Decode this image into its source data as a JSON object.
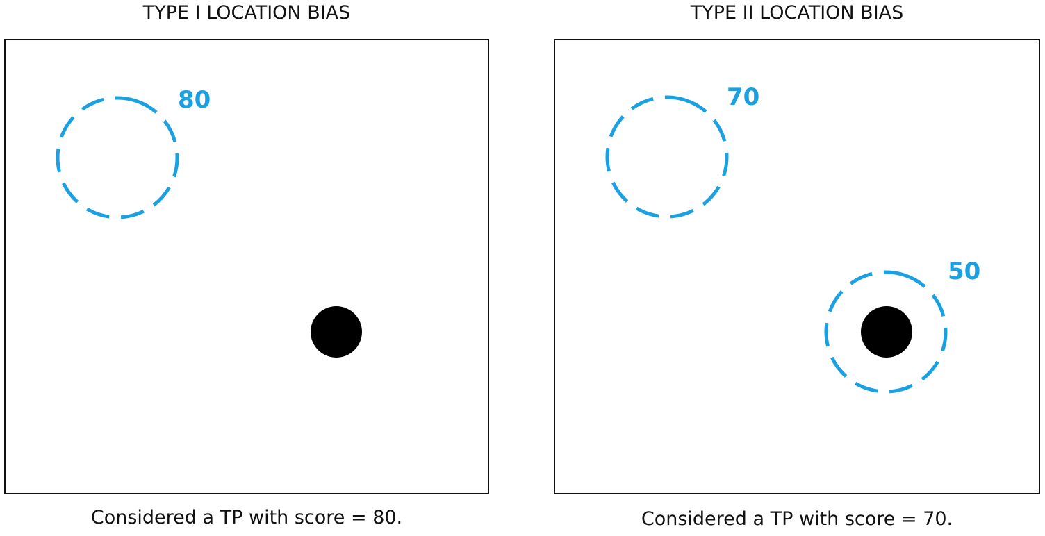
{
  "colors": {
    "prediction": "#1ba1e2",
    "ground_truth": "#000000",
    "frame": "#111111"
  },
  "panels": [
    {
      "title": "TYPE I LOCATION BIAS",
      "caption": "Considered a TP with score = 80.",
      "predictions": [
        {
          "score_label": "80"
        }
      ]
    },
    {
      "title": "TYPE II LOCATION BIAS",
      "caption": "Considered a TP with score = 70.",
      "predictions": [
        {
          "score_label": "70"
        },
        {
          "score_label": "50"
        }
      ]
    }
  ]
}
